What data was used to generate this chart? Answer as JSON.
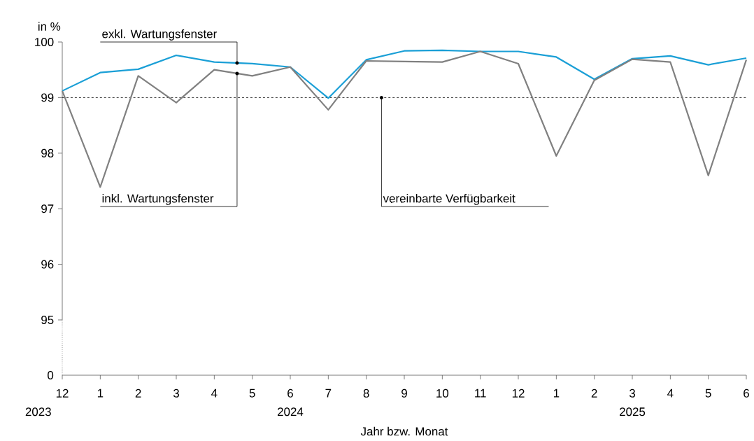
{
  "chart_data": {
    "type": "line",
    "ylabel": "in %",
    "xlabel": "Jahr bzw. Monat",
    "categories": [
      "12",
      "1",
      "2",
      "3",
      "4",
      "5",
      "6",
      "7",
      "8",
      "9",
      "10",
      "11",
      "12",
      "1",
      "2",
      "3",
      "4",
      "5",
      "6"
    ],
    "series": [
      {
        "name": "exkl. Wartungsfenster",
        "color": "#1a9fd6",
        "values": [
          99.12,
          99.45,
          99.51,
          99.76,
          99.64,
          99.61,
          99.55,
          98.99,
          99.68,
          99.84,
          99.85,
          99.83,
          99.83,
          99.73,
          99.33,
          99.7,
          99.75,
          99.59,
          99.71
        ]
      },
      {
        "name": "inkl. Wartungsfenster",
        "color": "#808080",
        "values": [
          99.12,
          97.39,
          99.39,
          98.91,
          99.5,
          99.39,
          99.55,
          98.78,
          99.66,
          99.65,
          99.64,
          99.83,
          99.61,
          97.95,
          99.31,
          99.69,
          99.64,
          97.6,
          99.68
        ]
      }
    ],
    "ylim": [
      95,
      100
    ],
    "yticks": [
      95,
      96,
      97,
      98,
      99,
      100
    ],
    "ref_lines": [
      {
        "axis": "y",
        "value": 99,
        "label": "vereinbarte Verfügbarkeit",
        "color": "#000000",
        "line_style": "dashed"
      }
    ],
    "annotations": [
      "2023",
      "2024",
      "2025",
      "0"
    ],
    "line_style": "solid"
  }
}
